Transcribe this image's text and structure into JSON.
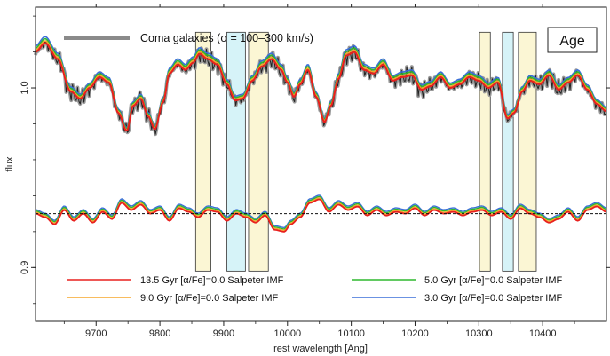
{
  "chart_data": {
    "type": "line",
    "xlabel": "rest wavelength [Ang]",
    "ylabel": "flux",
    "xlim": [
      9605,
      10500
    ],
    "ylim": [
      0.87,
      1.045
    ],
    "x_ticks": [
      9700,
      9800,
      9900,
      10000,
      10100,
      10200,
      10300,
      10400
    ],
    "y_ticks": [
      0.9,
      1.0
    ],
    "y_ticks_rotated": true,
    "reference_line_y": 0.93,
    "header_label": "Coma galaxies (σ = 100–300 km/s)",
    "panel_label": "Age",
    "bands": [
      {
        "x0": 9856,
        "x1": 9880,
        "color": "#fbf6d4"
      },
      {
        "x0": 9905,
        "x1": 9934,
        "color": "#d6f3f8"
      },
      {
        "x0": 9939,
        "x1": 9970,
        "color": "#fbf6d4"
      },
      {
        "x0": 10301,
        "x1": 10318,
        "color": "#fbf6d4"
      },
      {
        "x0": 10337,
        "x1": 10354,
        "color": "#d6f3f8"
      },
      {
        "x0": 10362,
        "x1": 10390,
        "color": "#fbf6d4"
      }
    ],
    "series": [
      {
        "name": "13.5 Gyr [α/Fe]=0.0 Salpeter IMF",
        "color": "#e8201e"
      },
      {
        "name": "9.0 Gyr [α/Fe]=0.0 Salpeter IMF",
        "color": "#f5a52a"
      },
      {
        "name": "5.0 Gyr [α/Fe]=0.0 Salpeter IMF",
        "color": "#2eb82e"
      },
      {
        "name": "3.0 Gyr [α/Fe]=0.0 Salpeter IMF",
        "color": "#3a6fd8"
      }
    ],
    "observed_series": {
      "name": "Coma galaxies (σ = 100–300 km/s)",
      "color": "#222222",
      "band_color": "#9a9a9a"
    },
    "spectrum_knots": [
      [
        9605,
        1.02
      ],
      [
        9620,
        1.025
      ],
      [
        9640,
        1.016
      ],
      [
        9660,
        0.998
      ],
      [
        9675,
        0.994
      ],
      [
        9690,
        1.0
      ],
      [
        9705,
        1.006
      ],
      [
        9720,
        1.003
      ],
      [
        9735,
        0.986
      ],
      [
        9748,
        0.976
      ],
      [
        9758,
        0.99
      ],
      [
        9770,
        0.994
      ],
      [
        9782,
        0.984
      ],
      [
        9792,
        0.977
      ],
      [
        9805,
        0.992
      ],
      [
        9815,
        1.008
      ],
      [
        9828,
        1.013
      ],
      [
        9840,
        1.01
      ],
      [
        9852,
        1.014
      ],
      [
        9862,
        1.019
      ],
      [
        9875,
        1.016
      ],
      [
        9890,
        1.013
      ],
      [
        9905,
        1.002
      ],
      [
        9918,
        0.993
      ],
      [
        9930,
        0.994
      ],
      [
        9945,
        1.004
      ],
      [
        9960,
        1.012
      ],
      [
        9975,
        1.016
      ],
      [
        9990,
        1.01
      ],
      [
        10000,
        1.003
      ],
      [
        10010,
        0.995
      ],
      [
        10020,
        1.002
      ],
      [
        10032,
        1.01
      ],
      [
        10045,
        0.995
      ],
      [
        10058,
        0.981
      ],
      [
        10068,
        0.99
      ],
      [
        10080,
        1.005
      ],
      [
        10092,
        1.018
      ],
      [
        10105,
        1.02
      ],
      [
        10120,
        1.01
      ],
      [
        10135,
        1.008
      ],
      [
        10150,
        1.013
      ],
      [
        10165,
        1.004
      ],
      [
        10180,
        1.006
      ],
      [
        10195,
        1.007
      ],
      [
        10210,
        0.999
      ],
      [
        10225,
        1.001
      ],
      [
        10240,
        1.006
      ],
      [
        10255,
        1.0
      ],
      [
        10270,
        1.002
      ],
      [
        10285,
        1.006
      ],
      [
        10300,
        1.004
      ],
      [
        10315,
        1.0
      ],
      [
        10330,
        1.003
      ],
      [
        10345,
        0.983
      ],
      [
        10355,
        0.986
      ],
      [
        10368,
        0.998
      ],
      [
        10380,
        1.004
      ],
      [
        10395,
        1.002
      ],
      [
        10410,
        1.007
      ],
      [
        10425,
        0.999
      ],
      [
        10440,
        1.003
      ],
      [
        10455,
        1.007
      ],
      [
        10470,
        0.999
      ],
      [
        10485,
        0.991
      ],
      [
        10500,
        0.987
      ]
    ],
    "residual_knots": [
      [
        9605,
        0.93
      ],
      [
        9620,
        0.928
      ],
      [
        9635,
        0.924
      ],
      [
        9650,
        0.932
      ],
      [
        9665,
        0.926
      ],
      [
        9680,
        0.93
      ],
      [
        9695,
        0.925
      ],
      [
        9710,
        0.931
      ],
      [
        9725,
        0.927
      ],
      [
        9740,
        0.936
      ],
      [
        9755,
        0.932
      ],
      [
        9770,
        0.935
      ],
      [
        9785,
        0.93
      ],
      [
        9800,
        0.932
      ],
      [
        9815,
        0.926
      ],
      [
        9830,
        0.933
      ],
      [
        9845,
        0.931
      ],
      [
        9860,
        0.928
      ],
      [
        9875,
        0.932
      ],
      [
        9890,
        0.931
      ],
      [
        9905,
        0.926
      ],
      [
        9920,
        0.93
      ],
      [
        9935,
        0.928
      ],
      [
        9950,
        0.925
      ],
      [
        9965,
        0.929
      ],
      [
        9980,
        0.921
      ],
      [
        9995,
        0.92
      ],
      [
        10005,
        0.924
      ],
      [
        10020,
        0.928
      ],
      [
        10035,
        0.936
      ],
      [
        10050,
        0.938
      ],
      [
        10065,
        0.931
      ],
      [
        10080,
        0.935
      ],
      [
        10095,
        0.932
      ],
      [
        10110,
        0.934
      ],
      [
        10125,
        0.929
      ],
      [
        10140,
        0.932
      ],
      [
        10155,
        0.929
      ],
      [
        10170,
        0.931
      ],
      [
        10185,
        0.93
      ],
      [
        10200,
        0.933
      ],
      [
        10215,
        0.929
      ],
      [
        10230,
        0.932
      ],
      [
        10245,
        0.93
      ],
      [
        10260,
        0.931
      ],
      [
        10275,
        0.929
      ],
      [
        10290,
        0.931
      ],
      [
        10305,
        0.932
      ],
      [
        10320,
        0.929
      ],
      [
        10335,
        0.931
      ],
      [
        10350,
        0.927
      ],
      [
        10365,
        0.933
      ],
      [
        10380,
        0.93
      ],
      [
        10395,
        0.928
      ],
      [
        10410,
        0.925
      ],
      [
        10425,
        0.927
      ],
      [
        10440,
        0.931
      ],
      [
        10455,
        0.926
      ],
      [
        10470,
        0.932
      ],
      [
        10485,
        0.934
      ],
      [
        10500,
        0.931
      ]
    ]
  }
}
